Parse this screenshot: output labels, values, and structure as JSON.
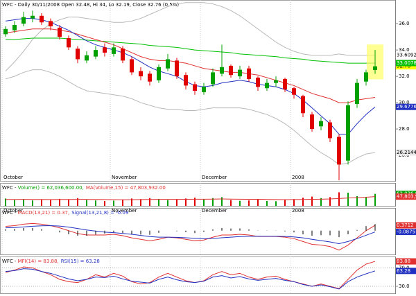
{
  "chart_data": [
    {
      "type": "candlestick",
      "title": "WFC - Daily 30/11/2008 Open 32.48, Hi 34, Lo 32.19, Close 32.76 (0.5%)",
      "categories": [
        "October",
        null,
        null,
        null,
        null,
        null,
        null,
        null,
        null,
        null,
        null,
        null,
        "November",
        null,
        null,
        null,
        null,
        null,
        null,
        null,
        null,
        null,
        "December",
        null,
        null,
        null,
        null,
        null,
        null,
        null,
        null,
        null,
        "2008",
        null,
        null,
        null,
        null,
        null,
        null,
        null,
        null,
        null
      ],
      "open": [
        35.2,
        35.5,
        36.0,
        36.4,
        36.6,
        36.2,
        35.7,
        34.9,
        34.1,
        33.2,
        33.5,
        34.2,
        33.7,
        34.1,
        33.3,
        32.4,
        32.2,
        31.7,
        32.6,
        33.2,
        32.1,
        31.4,
        30.8,
        31.4,
        32.2,
        32.8,
        32.0,
        32.6,
        31.9,
        31.1,
        31.5,
        31.8,
        31.1,
        30.5,
        29.1,
        28.2,
        28.5,
        27.4,
        25.6,
        29.9,
        31.6,
        32.48
      ],
      "high": [
        35.8,
        36.2,
        36.9,
        37.0,
        36.8,
        36.4,
        35.9,
        35.1,
        34.3,
        33.9,
        34.3,
        34.5,
        34.5,
        34.3,
        33.5,
        32.7,
        32.4,
        32.9,
        33.7,
        33.4,
        32.3,
        31.6,
        31.5,
        32.6,
        34.4,
        32.9,
        32.8,
        32.8,
        32.0,
        31.8,
        32.0,
        31.9,
        31.2,
        30.6,
        29.3,
        28.9,
        28.7,
        27.6,
        30.1,
        31.8,
        32.5,
        34
      ],
      "low": [
        35.0,
        35.3,
        35.8,
        36.1,
        35.9,
        35.5,
        34.8,
        34.0,
        33.0,
        33.0,
        33.3,
        33.5,
        33.5,
        33.0,
        32.1,
        31.7,
        31.3,
        31.5,
        32.4,
        31.8,
        31.0,
        30.6,
        30.6,
        31.2,
        32.0,
        31.9,
        31.8,
        31.6,
        30.9,
        30.9,
        31.2,
        30.8,
        30.3,
        28.9,
        27.8,
        27.9,
        27.0,
        24.1,
        25.3,
        29.6,
        31.3,
        32.19
      ],
      "close": [
        35.6,
        35.9,
        36.5,
        36.6,
        36.1,
        35.8,
        35.0,
        34.2,
        33.3,
        33.6,
        34.0,
        33.8,
        34.2,
        33.2,
        32.3,
        32.0,
        31.6,
        32.7,
        33.3,
        32.0,
        31.3,
        30.9,
        31.2,
        32.3,
        32.7,
        32.1,
        32.5,
        31.8,
        31.2,
        31.5,
        31.7,
        31.0,
        30.6,
        29.2,
        28.0,
        28.6,
        27.3,
        25.3,
        29.8,
        31.5,
        32.3,
        32.76
      ],
      "up_color": "#00a000",
      "down_color": "#e00000",
      "close_label_bg": "#ffff00",
      "highlight_color": "#ffff66",
      "ylim": [
        24,
        37.8
      ],
      "yticks": [
        {
          "value": 36,
          "label": "36.0"
        },
        {
          "value": 34,
          "label": "34.0"
        },
        {
          "value": 32,
          "label": "32.0"
        },
        {
          "value": 30,
          "label": "30.0"
        },
        {
          "value": 28,
          "label": "28.0"
        },
        {
          "value": 26,
          "label": "26.0"
        }
      ],
      "series": [
        {
          "color": "#b8b8b8",
          "label_bg": "#ffffff",
          "label_fg": "#000000",
          "values": [
            32.4,
            33.1,
            33.9,
            34.8,
            35.5,
            36.0,
            36.3,
            36.5,
            36.5,
            36.4,
            36.3,
            36.2,
            36.1,
            36.1,
            36.2,
            36.4,
            36.7,
            37.0,
            37.3,
            37.5,
            37.6,
            37.6,
            37.6,
            37.5,
            37.3,
            37.0,
            36.6,
            36.1,
            35.6,
            35.1,
            34.6,
            34.2,
            33.9,
            33.7,
            33.6,
            33.6,
            33.6,
            33.7,
            33.6,
            33.6,
            33.6,
            33.6092
          ]
        },
        {
          "color": "#b8b8b8",
          "label_bg": "#e8e8e8",
          "label_fg": "#000000",
          "values": [
            31.8,
            32.0,
            32.3,
            32.5,
            32.5,
            32.3,
            32.0,
            31.6,
            31.2,
            30.9,
            30.8,
            30.7,
            30.6,
            30.5,
            30.3,
            30.0,
            29.8,
            29.6,
            29.5,
            29.5,
            29.4,
            29.4,
            29.5,
            29.6,
            29.6,
            29.6,
            29.6,
            29.5,
            29.3,
            29.1,
            28.8,
            28.4,
            27.9,
            27.3,
            26.7,
            26.2,
            25.8,
            25.3,
            25.4,
            25.8,
            26.1,
            26.2144
          ]
        },
        {
          "color": "#00c000",
          "label_bg": "#00c000",
          "label_fg": "#ffffff",
          "values": [
            34.8,
            34.8,
            34.85,
            34.9,
            34.9,
            34.9,
            34.9,
            34.85,
            34.8,
            34.75,
            34.7,
            34.65,
            34.6,
            34.55,
            34.5,
            34.45,
            34.35,
            34.3,
            34.25,
            34.2,
            34.1,
            34.0,
            33.95,
            33.9,
            33.85,
            33.8,
            33.7,
            33.65,
            33.6,
            33.55,
            33.5,
            33.4,
            33.35,
            33.3,
            33.2,
            33.15,
            33.1,
            33.05,
            33.0,
            33.0,
            33.0,
            33.0078
          ]
        },
        {
          "color": "#e03030",
          "values": [
            35.3,
            35.4,
            35.5,
            35.6,
            35.6,
            35.6,
            35.5,
            35.4,
            35.2,
            35.0,
            34.8,
            34.6,
            34.4,
            34.1,
            33.8,
            33.5,
            33.3,
            33.2,
            33.2,
            33.1,
            33.0,
            32.8,
            32.6,
            32.5,
            32.4,
            32.3,
            32.3,
            32.2,
            32.1,
            31.9,
            31.7,
            31.5,
            31.3,
            31.0,
            30.7,
            30.5,
            30.3,
            30.0,
            30.0,
            30.2,
            30.3,
            30.4
          ]
        },
        {
          "color": "#2030c0",
          "label_bg": "#2030c0",
          "label_fg": "#ffffff",
          "values": [
            36.2,
            36.3,
            36.4,
            36.4,
            36.3,
            36.1,
            35.8,
            35.5,
            35.1,
            34.7,
            34.4,
            34.2,
            34.0,
            33.8,
            33.5,
            33.1,
            32.7,
            32.4,
            32.2,
            32.0,
            31.6,
            31.3,
            31.2,
            31.3,
            31.5,
            31.6,
            31.7,
            31.6,
            31.4,
            31.3,
            31.2,
            31.0,
            30.7,
            30.2,
            29.6,
            29.0,
            28.4,
            27.6,
            27.6,
            28.4,
            29.1,
            29.6776
          ]
        }
      ]
    },
    {
      "type": "bar",
      "title": "WFC - ",
      "ylim": [
        0,
        75000000
      ],
      "series": [
        {
          "name": "Volume() = 62,036,600.00,",
          "type": "bar",
          "color": "#00a000",
          "up_color": "#00a000",
          "down_color": "#e00000",
          "label_bg": "#00a000",
          "label_fg": "#ffffff",
          "values": [
            38000000,
            30000000,
            35000000,
            28000000,
            33000000,
            30000000,
            36000000,
            34000000,
            40000000,
            30000000,
            28000000,
            25000000,
            27000000,
            32000000,
            38000000,
            35000000,
            40000000,
            36000000,
            30000000,
            33000000,
            38000000,
            42000000,
            35000000,
            40000000,
            45000000,
            30000000,
            26000000,
            28000000,
            32000000,
            25000000,
            24000000,
            30000000,
            35000000,
            42000000,
            48000000,
            40000000,
            45000000,
            70000000,
            68000000,
            50000000,
            45000000,
            62036600
          ],
          "value_labels": [
            null,
            null,
            null,
            null,
            null,
            null,
            null,
            null,
            null,
            null,
            null,
            null,
            null,
            null,
            null,
            null,
            null,
            null,
            null,
            null,
            null,
            null,
            null,
            null,
            null,
            null,
            null,
            null,
            null,
            null,
            null,
            null,
            null,
            null,
            null,
            null,
            null,
            null,
            null,
            null,
            null,
            "62,036,600"
          ]
        },
        {
          "name": "MA(Volume,15) = 47,803,932.00",
          "type": "line",
          "color": "#e03030",
          "label_bg": "#e03030",
          "label_fg": "#ffffff",
          "values": [
            33000000,
            33200000,
            33400000,
            33100000,
            33000000,
            32800000,
            33000000,
            33100000,
            33500000,
            33300000,
            33000000,
            32500000,
            32000000,
            31800000,
            32200000,
            32500000,
            33000000,
            33500000,
            33300000,
            33600000,
            34000000,
            34500000,
            34500000,
            35000000,
            35500000,
            35000000,
            34500000,
            34000000,
            33800000,
            33200000,
            32500000,
            32200000,
            32400000,
            33000000,
            34000000,
            34500000,
            35500000,
            38000000,
            40500000,
            42500000,
            44500000,
            47803932
          ],
          "value_labels": [
            null,
            null,
            null,
            null,
            null,
            null,
            null,
            null,
            null,
            null,
            null,
            null,
            null,
            null,
            null,
            null,
            null,
            null,
            null,
            null,
            null,
            null,
            null,
            null,
            null,
            null,
            null,
            null,
            null,
            null,
            null,
            null,
            null,
            null,
            null,
            null,
            null,
            null,
            null,
            null,
            null,
            "47,803,932"
          ]
        }
      ]
    },
    {
      "type": "line",
      "title": "WFC - ",
      "ylim": [
        -1.6,
        1.0
      ],
      "series": [
        {
          "name": "MACD(13,21) = 0.37,",
          "type": "line",
          "color": "#e03030",
          "label_bg": "#e03030",
          "label_fg": "#ffffff",
          "values": [
            0.3,
            0.35,
            0.45,
            0.5,
            0.45,
            0.35,
            0.2,
            0.0,
            -0.2,
            -0.3,
            -0.3,
            -0.3,
            -0.25,
            -0.35,
            -0.5,
            -0.6,
            -0.7,
            -0.6,
            -0.45,
            -0.5,
            -0.6,
            -0.7,
            -0.65,
            -0.45,
            -0.3,
            -0.3,
            -0.25,
            -0.3,
            -0.4,
            -0.4,
            -0.4,
            -0.45,
            -0.55,
            -0.75,
            -0.95,
            -1.0,
            -1.1,
            -1.35,
            -1.0,
            -0.5,
            0.0,
            0.3712
          ]
        },
        {
          "name": "Signal(13,21,8) = -0.09",
          "type": "line",
          "color": "#2030c0",
          "label_bg": "#2030c0",
          "label_fg": "#ffffff",
          "values": [
            0.2,
            0.22,
            0.26,
            0.31,
            0.34,
            0.35,
            0.32,
            0.25,
            0.15,
            0.05,
            -0.03,
            -0.1,
            -0.14,
            -0.19,
            -0.25,
            -0.33,
            -0.41,
            -0.45,
            -0.45,
            -0.46,
            -0.49,
            -0.53,
            -0.56,
            -0.54,
            -0.49,
            -0.45,
            -0.41,
            -0.39,
            -0.39,
            -0.39,
            -0.39,
            -0.4,
            -0.43,
            -0.5,
            -0.6,
            -0.69,
            -0.78,
            -0.9,
            -0.75,
            -0.55,
            -0.32,
            -0.0875
          ]
        },
        {
          "type": "bar",
          "color": "#000000",
          "values": [
            0.1,
            0.13,
            0.19,
            0.19,
            0.11,
            0,
            -0.12,
            -0.25,
            -0.35,
            -0.35,
            -0.27,
            -0.2,
            -0.11,
            -0.16,
            -0.25,
            -0.27,
            -0.29,
            -0.15,
            0,
            -0.04,
            -0.11,
            -0.17,
            -0.09,
            0.09,
            0.19,
            0.15,
            0.16,
            0.09,
            -0.01,
            -0.01,
            -0.01,
            -0.05,
            -0.12,
            -0.25,
            -0.35,
            -0.31,
            -0.32,
            -0.45,
            -0.25,
            0.05,
            0.32,
            0.46
          ]
        }
      ]
    },
    {
      "type": "line",
      "title": "WFC - ",
      "ylim": [
        15,
        90
      ],
      "yticks": [
        {
          "value": 70,
          "label": "70.0"
        },
        {
          "value": 30,
          "label": "30.0"
        }
      ],
      "series": [
        {
          "name": "MFI(14) = 83.88,",
          "type": "line",
          "color": "#e03030",
          "label_bg": "#e03030",
          "label_fg": "#ffffff",
          "values": [
            60,
            65,
            72,
            70,
            62,
            55,
            45,
            40,
            38,
            45,
            55,
            50,
            58,
            52,
            40,
            35,
            38,
            50,
            58,
            50,
            42,
            38,
            42,
            55,
            62,
            55,
            58,
            50,
            45,
            50,
            52,
            45,
            40,
            35,
            30,
            35,
            30,
            25,
            45,
            65,
            78,
            83.88
          ]
        },
        {
          "name": "RSI(15) = 63.28",
          "type": "line",
          "color": "#2030c0",
          "label_bg": "#2030c0",
          "label_fg": "#ffffff",
          "values": [
            62,
            64,
            68,
            67,
            62,
            58,
            52,
            46,
            42,
            45,
            50,
            49,
            52,
            46,
            41,
            39,
            37,
            45,
            50,
            44,
            40,
            38,
            41,
            50,
            53,
            48,
            51,
            46,
            43,
            45,
            47,
            43,
            40,
            34,
            30,
            33,
            29,
            24,
            40,
            50,
            57,
            63.28
          ]
        }
      ]
    }
  ]
}
